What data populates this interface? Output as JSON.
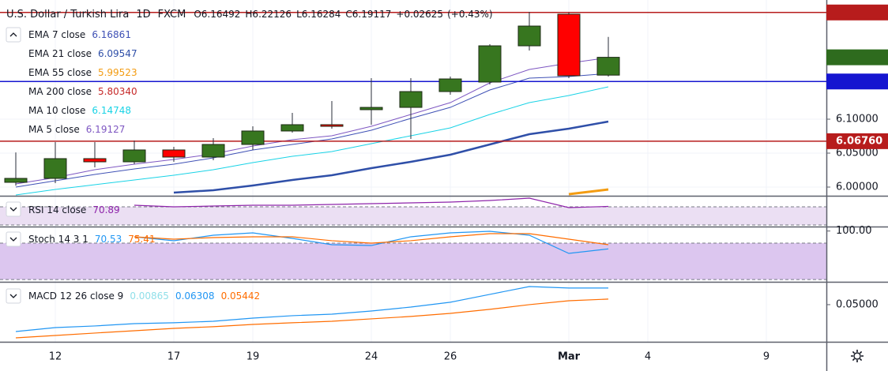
{
  "chart_data": {
    "type": "candlestick",
    "header": {
      "symbol": "U.S. Dollar / Turkish Lira",
      "interval": "1D",
      "source": "FXCM",
      "ohlc": [
        {
          "value": 6.16492,
          "label": "O6.16492"
        },
        {
          "value": 6.22126,
          "label": "H6.22126"
        },
        {
          "value": 6.16284,
          "label": "L6.16284"
        },
        {
          "value": 6.19117,
          "label": "C6.19117"
        }
      ],
      "change": {
        "value": 0.02625,
        "label": "+0.02625"
      },
      "change_pct": {
        "value": 0.43,
        "label": "(+0.43%)"
      }
    },
    "categories": [
      null,
      "12",
      null,
      null,
      "17",
      null,
      "19",
      null,
      null,
      "24",
      null,
      "26",
      null,
      null,
      "Mar",
      null,
      "4",
      null,
      null,
      "9"
    ],
    "open": [
      6.007,
      6.0128,
      6.0419,
      6.0372,
      6.0547,
      6.0442,
      6.0628,
      6.0826,
      6.0919,
      6.114,
      6.1174,
      6.1407,
      6.1547,
      6.2081,
      6.2547,
      6.16492,
      null,
      null,
      null,
      null
    ],
    "high": [
      6.051,
      6.0663,
      6.0663,
      6.0686,
      6.0593,
      6.0721,
      6.0895,
      6.1093,
      6.1267,
      6.1605,
      6.1605,
      6.1628,
      6.2105,
      6.2581,
      6.2572,
      6.22126,
      null,
      null,
      null,
      null
    ],
    "low": [
      6.002,
      6.0058,
      6.0291,
      6.0337,
      6.0372,
      6.0395,
      6.0547,
      6.0802,
      6.086,
      6.0919,
      6.0709,
      6.136,
      6.1512,
      6.2012,
      6.1605,
      6.16284,
      null,
      null,
      null,
      null
    ],
    "close": [
      6.0128,
      6.0419,
      6.0372,
      6.0547,
      6.0442,
      6.0628,
      6.0826,
      6.0919,
      6.0895,
      6.1174,
      6.1407,
      6.1593,
      6.2081,
      6.2372,
      6.164,
      6.19117,
      null,
      null,
      null,
      null
    ],
    "up_color": "#37761f",
    "down_color": "#ff0000",
    "ylim": [
      5.9872,
      6.2756
    ],
    "yticks": [
      {
        "value": 6.0,
        "label": "6.00000"
      },
      {
        "value": 6.05,
        "label": "6.05000"
      },
      {
        "value": 6.1,
        "label": "6.10000"
      }
    ],
    "grid": true,
    "price_lines": [
      {
        "value": 6.25724,
        "color": "#b71c1c"
      },
      {
        "value": 6.15555,
        "color": "#1515d0"
      },
      {
        "value": 6.0676,
        "label": "6.06760",
        "color": "#b71c1c"
      }
    ],
    "last_price": {
      "value": 6.19117,
      "color": "#2e6b1e"
    },
    "overlays": [
      {
        "name": "EMA 7 close",
        "color": "#3f51b5",
        "width": 1,
        "last": 6.16861,
        "values": [
          6.0,
          6.0093,
          6.0186,
          6.0267,
          6.0337,
          6.043,
          6.0547,
          6.0628,
          6.0709,
          6.0837,
          6.1012,
          6.1174,
          6.143,
          6.1605,
          6.1628,
          6.1674,
          null,
          null,
          null,
          null
        ]
      },
      {
        "name": "EMA 21 close",
        "color": "#2f4fa8",
        "width": 2.5,
        "last": 6.09547,
        "values": [
          null,
          null,
          null,
          null,
          5.9919,
          5.9953,
          6.0023,
          6.0105,
          6.0174,
          6.0279,
          6.0372,
          6.0477,
          6.0628,
          6.0779,
          6.086,
          6.0965,
          null,
          null,
          null,
          null
        ]
      },
      {
        "name": "EMA 55 close",
        "color": "#f39c12",
        "width": 3,
        "last": 5.99523,
        "values": [
          null,
          null,
          null,
          null,
          null,
          null,
          null,
          null,
          null,
          null,
          null,
          null,
          null,
          null,
          5.9895,
          5.9965,
          null,
          null,
          null,
          null
        ]
      },
      {
        "name": "MA 200 close",
        "color": "#c62828",
        "width": 1,
        "last": {
          "value": 5.8034,
          "label": "5.80340"
        }
      },
      {
        "name": "MA 10 close",
        "color": "#19d3e6",
        "width": 1,
        "last": 6.14748,
        "values": [
          5.9884,
          5.9965,
          6.0035,
          6.0105,
          6.0174,
          6.0256,
          6.036,
          6.0453,
          6.0523,
          6.064,
          6.0756,
          6.0872,
          6.107,
          6.1244,
          6.1349,
          6.1477,
          null,
          null,
          null,
          null
        ]
      },
      {
        "name": "MA 5 close",
        "color": "#7e57c2",
        "width": 1,
        "last": 6.19127,
        "values": [
          6.0047,
          6.014,
          6.0256,
          6.0337,
          6.0407,
          6.0488,
          6.0605,
          6.0698,
          6.0756,
          6.0895,
          6.107,
          6.1244,
          6.1535,
          6.1733,
          6.1826,
          6.1907,
          null,
          null,
          null,
          null
        ]
      }
    ],
    "panes": [
      {
        "title": "RSI 14 close",
        "ylim": [
          26.5,
          90.9
        ],
        "bands": [
          30,
          70
        ],
        "band_fill": "#ebdff3",
        "series": [
          {
            "color": "#8e24aa",
            "last": 70.89,
            "values": [
              null,
              null,
              null,
              73.5,
              70,
              71.7,
              73.5,
              73.5,
              75.2,
              77,
              78.7,
              80.4,
              83.9,
              89.1,
              68.3,
              70.9,
              null,
              null,
              null,
              null
            ]
          }
        ]
      },
      {
        "title": "Stoch 14 3 1",
        "ylim": [
          16.2,
          104.8
        ],
        "bands": [
          20,
          80
        ],
        "band_fill": "#dcc6ef",
        "yticks": [
          {
            "value": 100,
            "label": "100.00"
          }
        ],
        "series": [
          {
            "color": "#2196f3",
            "last": 70.53,
            "values": [
              null,
              null,
              null,
              90.5,
              84,
              93.1,
              97,
              87.9,
              77.4,
              76.1,
              90.5,
              97,
              99.6,
              93.1,
              63.1,
              70.5,
              null,
              null,
              null,
              null
            ]
          },
          {
            "color": "#ff6d00",
            "last": 75.41,
            "values": [
              null,
              null,
              null,
              90.5,
              86.6,
              89.2,
              90.5,
              90.5,
              84,
              80,
              84,
              90.5,
              95.7,
              95.7,
              86.6,
              77.4,
              null,
              null,
              null,
              null
            ]
          }
        ]
      },
      {
        "title": "MACD 12 26 close 9",
        "ylim": [
          0.0207,
          0.0674
        ],
        "yticks": [
          {
            "value": 0.05,
            "label": "0.05000"
          }
        ],
        "series": [
          {
            "color": "#8fdfe9",
            "last": 0.00865
          },
          {
            "color": "#2196f3",
            "last": 0.06308,
            "values": [
              0.0288,
              0.0319,
              0.0332,
              0.035,
              0.0357,
              0.0369,
              0.0394,
              0.0413,
              0.0425,
              0.045,
              0.0481,
              0.0519,
              0.0581,
              0.0643,
              0.0631,
              0.0631,
              null,
              null,
              null,
              null
            ]
          },
          {
            "color": "#ff6d00",
            "last": 0.05442,
            "values": [
              0.0238,
              0.0257,
              0.0276,
              0.0294,
              0.0313,
              0.0326,
              0.0344,
              0.0357,
              0.0369,
              0.0388,
              0.0407,
              0.0431,
              0.0463,
              0.05,
              0.0531,
              0.0544,
              null,
              null,
              null,
              null
            ]
          }
        ]
      }
    ]
  }
}
